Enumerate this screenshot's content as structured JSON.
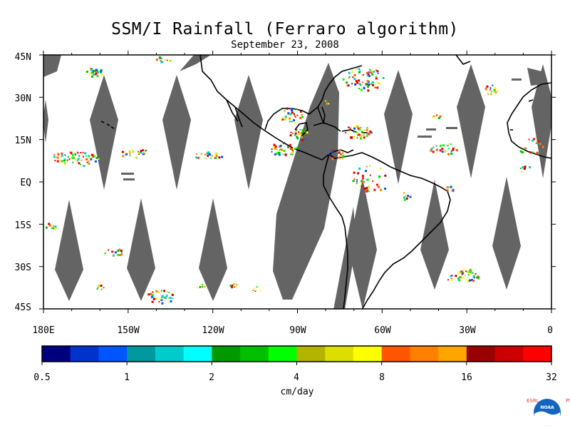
{
  "title": "SSM/I Rainfall (Ferraro algorithm)",
  "subtitle": "September 23, 2008",
  "map": {
    "lat_labels": [
      "45N",
      "30N",
      "15N",
      "EQ",
      "15S",
      "30S",
      "45S"
    ],
    "lon_labels": [
      "180E",
      "150W",
      "120W",
      "90W",
      "60W",
      "30W",
      "0"
    ],
    "swath_gap_color": "#646464",
    "land_outline_color": "#000000"
  },
  "colorbar": {
    "colors": [
      "#00007f",
      "#0033cc",
      "#0055ff",
      "#00999f",
      "#00cccc",
      "#00ffff",
      "#009900",
      "#00c000",
      "#00ff00",
      "#b3b300",
      "#dddd00",
      "#ffff00",
      "#ff5500",
      "#ff8000",
      "#ffa500",
      "#990000",
      "#cc0000",
      "#ff0000"
    ],
    "tick_labels": [
      "0.5",
      "1",
      "2",
      "4",
      "8",
      "16",
      "32"
    ],
    "units": "cm/day"
  },
  "logo": {
    "left_letters": "ESRL",
    "right_letters": "PSD",
    "badge_text": "NOAA",
    "colors": {
      "ring": "#1565c0",
      "wave": "#ffffff",
      "letters": "#e53935"
    }
  }
}
